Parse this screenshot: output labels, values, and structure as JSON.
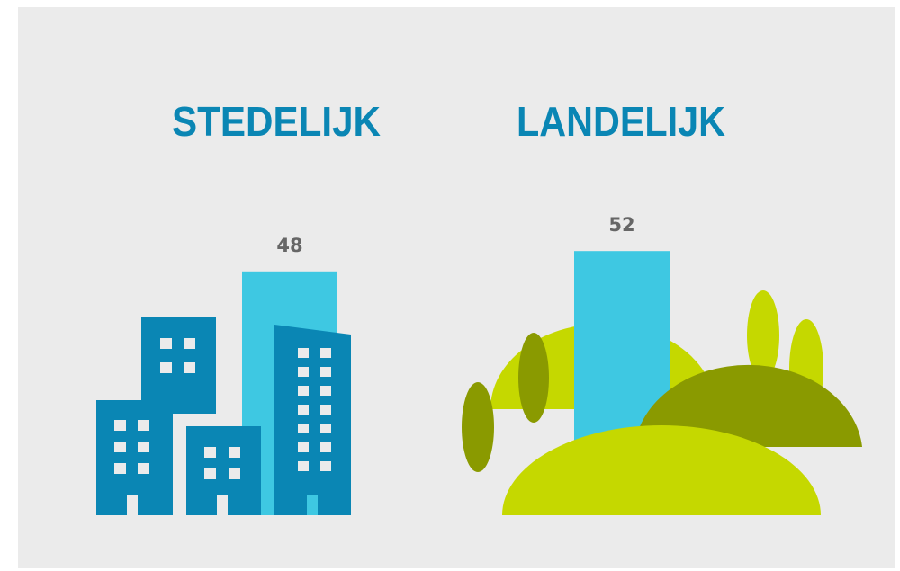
{
  "chart_data": {
    "type": "bar",
    "categories": [
      "STEDELIJK",
      "LANDELIJK"
    ],
    "values": [
      48,
      52
    ],
    "color": "#3ec8e2"
  }
}
